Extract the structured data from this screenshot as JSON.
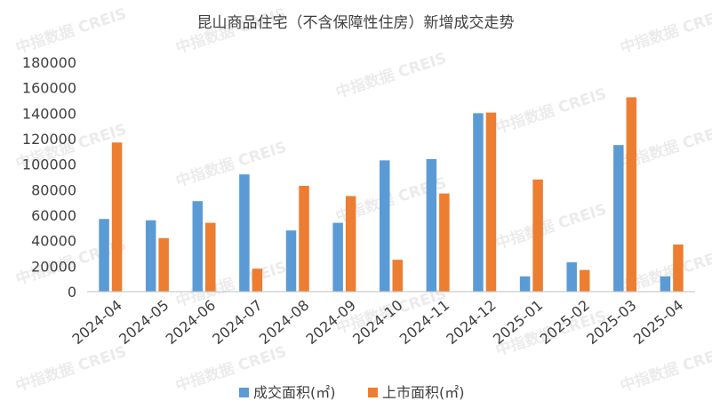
{
  "watermark": "中指数据 CREIS",
  "chart_data": {
    "type": "bar",
    "title": "昆山商品住宅（不含保障性住房）新增成交走势",
    "xlabel": "",
    "ylabel": "",
    "ylim": [
      0,
      180000
    ],
    "yticks": [
      0,
      20000,
      40000,
      60000,
      80000,
      100000,
      120000,
      140000,
      160000,
      180000
    ],
    "grid": false,
    "legend_position": "bottom",
    "categories": [
      "2024-04",
      "2024-05",
      "2024-06",
      "2024-07",
      "2024-08",
      "2024-09",
      "2024-10",
      "2024-11",
      "2024-12",
      "2025-01",
      "2025-02",
      "2025-03",
      "2025-04"
    ],
    "series": [
      {
        "name": "成交面积(㎡)",
        "color": "#5b9bd5",
        "values": [
          57000,
          56000,
          71000,
          92000,
          48000,
          54000,
          103000,
          104000,
          140000,
          12000,
          23000,
          115000,
          12000
        ]
      },
      {
        "name": "上市面积(㎡)",
        "color": "#ed7d31",
        "values": [
          117000,
          42000,
          54000,
          18000,
          83000,
          75000,
          25000,
          77000,
          140500,
          88000,
          17000,
          152500,
          37000
        ]
      }
    ]
  }
}
